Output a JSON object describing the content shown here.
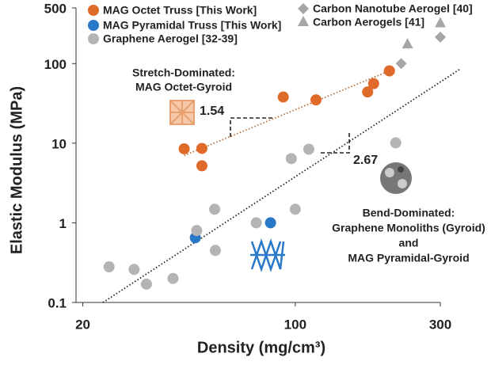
{
  "chart_data": {
    "type": "scatter",
    "log_x": true,
    "log_y": true,
    "xlabel": "Density (mg/cm³)",
    "ylabel": "Elastic Modulus (MPa)",
    "xlim": [
      19,
      300
    ],
    "ylim": [
      0.1,
      500
    ],
    "xticks": [
      20,
      100,
      300
    ],
    "yticks": [
      0.1,
      1,
      10,
      100,
      500
    ],
    "series": [
      {
        "name": "MAG Octet Truss [This Work]",
        "color": "#e06a2a",
        "marker": "circle",
        "x": [
          43.1,
          49.3,
          49.3,
          91.3,
          117,
          173,
          181,
          204
        ],
        "values": [
          8.5,
          8.6,
          5.2,
          38,
          35,
          44,
          56,
          81
        ]
      },
      {
        "name": "MAG Pyramidal Truss [This Work]",
        "color": "#2a78c8",
        "marker": "circle",
        "x": [
          46.9,
          82.9
        ],
        "values": [
          0.65,
          1.0
        ]
      },
      {
        "name": "Graphene Aerogel [32-39]",
        "color": "#b4b4b4",
        "marker": "circle",
        "x": [
          24.4,
          29.5,
          32.4,
          39.6,
          47.4,
          54.6,
          54.3,
          74.4,
          97,
          100,
          110.8,
          214
        ],
        "values": [
          0.28,
          0.26,
          0.17,
          0.2,
          0.8,
          0.45,
          1.48,
          1.0,
          6.4,
          1.48,
          8.4,
          10.1
        ]
      },
      {
        "name": "Carbon Nanotube Aerogel [40]",
        "color": "#a6a6a6",
        "marker": "diamond",
        "x": [
          223,
          300
        ],
        "values": [
          100,
          215
        ]
      },
      {
        "name": "Carbon Aerogels [41]",
        "color": "#a6a6a6",
        "marker": "triangle",
        "x": [
          234,
          300
        ],
        "values": [
          174,
          320
        ]
      }
    ],
    "trend_lines": [
      {
        "color": "#b8703a",
        "x": [
          43.1,
          204
        ],
        "values": [
          7.0,
          81
        ]
      },
      {
        "color": "#222222",
        "x": [
          23.3,
          348
        ],
        "values": [
          0.1,
          85
        ]
      }
    ],
    "annotations": [
      {
        "text": "1.54"
      },
      {
        "text": "2.67"
      },
      {
        "lines": [
          "Stretch-Dominated:",
          "MAG Octet-Gyroid"
        ]
      },
      {
        "lines": [
          "Bend-Dominated:",
          "Graphene Monoliths (Gyroid)",
          "and",
          "MAG Pyramidal-Gyroid"
        ]
      }
    ]
  }
}
